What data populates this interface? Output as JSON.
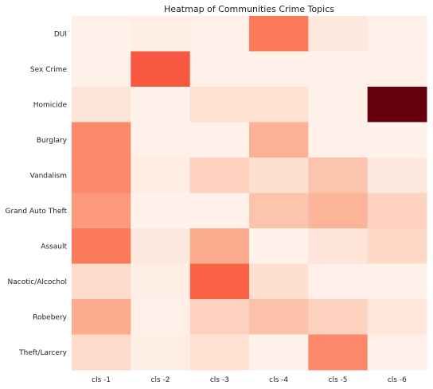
{
  "chart_data": {
    "type": "heatmap",
    "title": "Heatmap of Communities Crime Topics",
    "xlabel": "",
    "ylabel": "",
    "grid": false,
    "colormap": "Reds",
    "x_categories": [
      "cls -1",
      "cls -2",
      "cls -3",
      "cls -4",
      "cls -5",
      "cls -6"
    ],
    "y_categories": [
      "DUI",
      "Sex Crime",
      "Homicide",
      "Burglary",
      "Vandalism",
      "Grand Auto Theft",
      "Assault",
      "Nacotic/Alcochol",
      "Robebery",
      "Theft/Larcery"
    ],
    "values": [
      [
        0.03,
        0.04,
        0.03,
        0.45,
        0.07,
        0.03
      ],
      [
        0.03,
        0.55,
        0.03,
        0.03,
        0.03,
        0.03
      ],
      [
        0.1,
        0.02,
        0.12,
        0.12,
        0.02,
        1.0
      ],
      [
        0.4,
        0.03,
        0.03,
        0.28,
        0.03,
        0.02
      ],
      [
        0.4,
        0.05,
        0.17,
        0.13,
        0.22,
        0.07
      ],
      [
        0.35,
        0.02,
        0.02,
        0.22,
        0.27,
        0.17
      ],
      [
        0.45,
        0.07,
        0.3,
        0.02,
        0.1,
        0.15
      ],
      [
        0.14,
        0.04,
        0.52,
        0.13,
        0.03,
        0.02
      ],
      [
        0.3,
        0.03,
        0.17,
        0.23,
        0.17,
        0.09
      ],
      [
        0.14,
        0.04,
        0.12,
        0.02,
        0.4,
        0.03
      ]
    ]
  }
}
